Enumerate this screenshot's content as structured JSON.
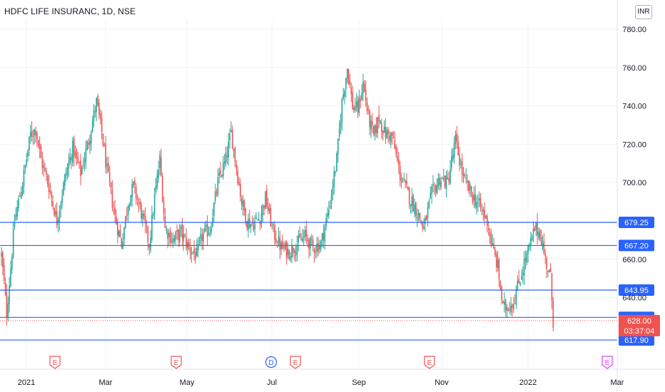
{
  "header": {
    "title": "HDFC LIFE INSURANC, 1D, NSE"
  },
  "currency_button": "INR",
  "colors": {
    "up": "#26a69a",
    "down": "#ef5350",
    "level": "#2962ff",
    "grid": "#f0f3fa",
    "text": "#131722"
  },
  "chart_data": {
    "type": "candlestick",
    "title": "HDFC LIFE INSURANC, 1D, NSE",
    "ylim": [
      612,
      788
    ],
    "y_ticks": [
      "780.00",
      "760.00",
      "740.00",
      "720.00",
      "700.00",
      "660.00",
      "640.00"
    ],
    "x_ticks": [
      "2021",
      "Mar",
      "May",
      "Jul",
      "Sep",
      "Nov",
      "2022",
      "Mar"
    ],
    "horizontal_levels": [
      {
        "value": 679.25,
        "label": "679.25"
      },
      {
        "value": 667.2,
        "label": "667.20"
      },
      {
        "value": 643.95,
        "label": "643.95"
      },
      {
        "value": 629.7,
        "label": "629.70"
      },
      {
        "value": 617.9,
        "label": "617.90"
      }
    ],
    "last_price": {
      "value": 628.0,
      "label": "628.00",
      "countdown": "03:37:04"
    },
    "event_markers": [
      {
        "type": "E",
        "position": "2021 Jan"
      },
      {
        "type": "E",
        "position": "2021 Apr"
      },
      {
        "type": "D",
        "position": "2021 Jun"
      },
      {
        "type": "E",
        "position": "2021 Jul"
      },
      {
        "type": "E",
        "position": "2021 Oct"
      },
      {
        "type": "E",
        "position": "2022 Feb"
      }
    ],
    "price_path": [
      [
        0,
        662
      ],
      [
        4,
        632
      ],
      [
        10,
        680
      ],
      [
        16,
        700
      ],
      [
        22,
        725
      ],
      [
        26,
        728
      ],
      [
        30,
        712
      ],
      [
        36,
        698
      ],
      [
        42,
        680
      ],
      [
        48,
        702
      ],
      [
        54,
        718
      ],
      [
        60,
        705
      ],
      [
        66,
        722
      ],
      [
        72,
        742
      ],
      [
        76,
        726
      ],
      [
        80,
        706
      ],
      [
        86,
        682
      ],
      [
        91,
        668
      ],
      [
        96,
        690
      ],
      [
        100,
        698
      ],
      [
        106,
        684
      ],
      [
        112,
        668
      ],
      [
        116,
        692
      ],
      [
        120,
        712
      ],
      [
        124,
        676
      ],
      [
        130,
        670
      ],
      [
        136,
        674
      ],
      [
        142,
        666
      ],
      [
        148,
        662
      ],
      [
        152,
        672
      ],
      [
        158,
        676
      ],
      [
        164,
        700
      ],
      [
        170,
        712
      ],
      [
        174,
        726
      ],
      [
        178,
        708
      ],
      [
        182,
        690
      ],
      [
        186,
        680
      ],
      [
        190,
        678
      ],
      [
        196,
        682
      ],
      [
        200,
        692
      ],
      [
        206,
        674
      ],
      [
        212,
        666
      ],
      [
        218,
        664
      ],
      [
        224,
        668
      ],
      [
        230,
        672
      ],
      [
        236,
        666
      ],
      [
        242,
        668
      ],
      [
        248,
        686
      ],
      [
        254,
        712
      ],
      [
        258,
        742
      ],
      [
        262,
        760
      ],
      [
        266,
        740
      ],
      [
        270,
        738
      ],
      [
        274,
        752
      ],
      [
        278,
        734
      ],
      [
        282,
        724
      ],
      [
        286,
        734
      ],
      [
        290,
        726
      ],
      [
        296,
        724
      ],
      [
        302,
        704
      ],
      [
        308,
        694
      ],
      [
        314,
        686
      ],
      [
        320,
        676
      ],
      [
        326,
        694
      ],
      [
        332,
        702
      ],
      [
        338,
        700
      ],
      [
        344,
        722
      ],
      [
        350,
        702
      ],
      [
        356,
        694
      ],
      [
        362,
        688
      ],
      [
        368,
        680
      ],
      [
        372,
        666
      ],
      [
        376,
        656
      ],
      [
        380,
        634
      ],
      [
        384,
        636
      ],
      [
        388,
        638
      ],
      [
        392,
        648
      ],
      [
        396,
        658
      ],
      [
        400,
        666
      ],
      [
        404,
        676
      ],
      [
        408,
        674
      ],
      [
        412,
        660
      ],
      [
        416,
        650
      ],
      [
        418,
        628
      ]
    ]
  }
}
